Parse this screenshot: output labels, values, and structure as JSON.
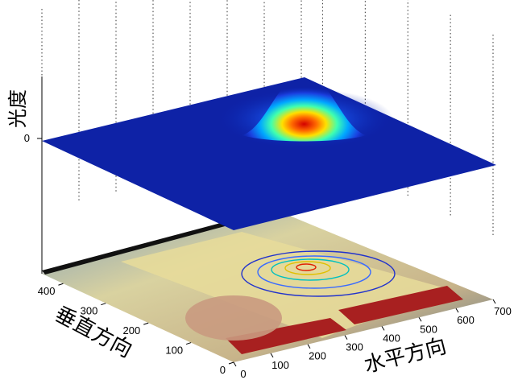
{
  "chart_data": {
    "type": "surface",
    "title": "",
    "xlabel": "水平方向",
    "ylabel": "垂直方向",
    "zlabel": "光度",
    "x_ticks": [
      0,
      100,
      200,
      300,
      400,
      500,
      600,
      700
    ],
    "y_ticks": [
      0,
      100,
      200,
      300,
      400
    ],
    "z_ticks": [
      0
    ],
    "xlim": [
      0,
      700
    ],
    "ylim": [
      0,
      450
    ],
    "grid": true,
    "surface": {
      "shape": "gaussian-peak",
      "peak_x": 330,
      "peak_y": 320,
      "colormap": "jet"
    },
    "base_image": "tabletop photograph with hand over printed poster, contour overlay",
    "colors": {
      "surface_low": "#0a1ea8",
      "surface_peak": "#d40000",
      "contour": "#2233cc"
    }
  }
}
